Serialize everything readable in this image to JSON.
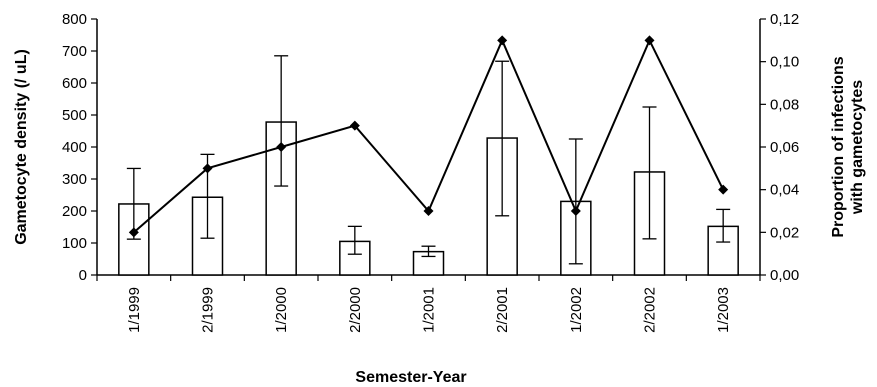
{
  "chart_data": {
    "type": "bar",
    "xlabel": "Semester-Year",
    "ylabel": "Gametocyte density (/ uL)",
    "y2label_line1": "Proportion of infections",
    "y2label_line2": "with gametocytes",
    "categories": [
      "1/1999",
      "2/1999",
      "1/2000",
      "2/2000",
      "1/2001",
      "2/2001",
      "1/2002",
      "2/2002",
      "1/2003"
    ],
    "ylim": [
      0,
      800
    ],
    "yticks": [
      0,
      100,
      200,
      300,
      400,
      500,
      600,
      700,
      800
    ],
    "y2lim": [
      0,
      0.12
    ],
    "y2ticks": [
      0,
      0.02,
      0.04,
      0.06,
      0.08,
      0.1,
      0.12
    ],
    "y2tick_labels": [
      "0,00",
      "0,02",
      "0,04",
      "0,06",
      "0,08",
      "0,10",
      "0,12"
    ],
    "series": [
      {
        "type": "bar",
        "axis": "left",
        "values": [
          222,
          243,
          478,
          105,
          73,
          428,
          230,
          322,
          152
        ],
        "error_low": [
          112,
          115,
          278,
          65,
          58,
          185,
          35,
          113,
          103
        ],
        "error_high": [
          333,
          377,
          685,
          152,
          90,
          668,
          425,
          525,
          205
        ]
      },
      {
        "type": "line",
        "axis": "right",
        "marker": "diamond",
        "values": [
          0.02,
          0.05,
          0.06,
          0.07,
          0.03,
          0.11,
          0.03,
          0.11,
          0.04
        ]
      }
    ],
    "grid": false,
    "legend": "none",
    "colors": {
      "bar_fill": "#ffffff",
      "stroke": "#000000"
    }
  }
}
